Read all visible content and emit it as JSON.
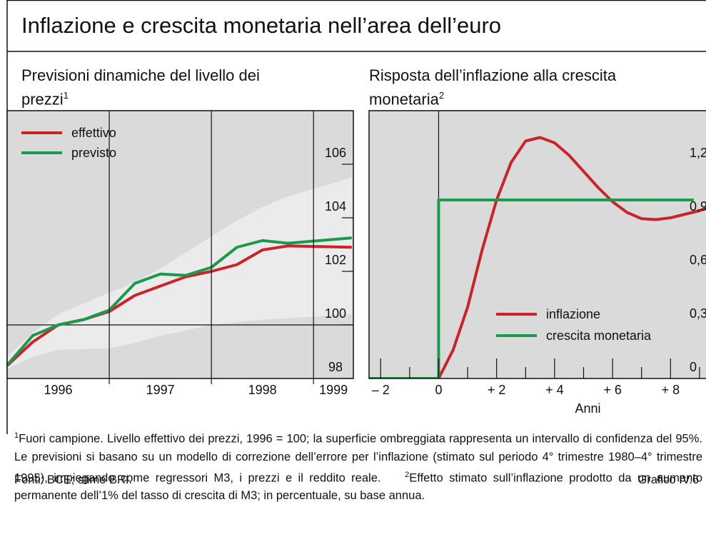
{
  "title": "Inflazione e crescita monetaria nell’area dell’euro",
  "chart_data": [
    {
      "type": "line",
      "title": "Previsioni dinamiche del livello dei prezzi",
      "title_note": "1",
      "x": [
        1996,
        1996.25,
        1996.5,
        1996.75,
        1997,
        1997.25,
        1997.5,
        1997.75,
        1998,
        1998.25,
        1998.5,
        1998.75,
        1999.375
      ],
      "series": [
        {
          "name": "effettivo",
          "color": "#c8242b",
          "values": [
            98.48,
            99.36,
            100.0,
            100.2,
            100.5,
            101.1,
            101.45,
            101.8,
            102.0,
            102.25,
            102.8,
            102.95,
            102.9
          ]
        },
        {
          "name": "previsto",
          "color": "#1a9a4a",
          "values": [
            98.5,
            99.6,
            100.0,
            100.2,
            100.55,
            101.55,
            101.9,
            101.85,
            102.15,
            102.9,
            103.15,
            103.05,
            103.25
          ]
        }
      ],
      "band": {
        "color": "#ebebeb",
        "upper": [
          98.8,
          99.7,
          100.4,
          100.8,
          101.2,
          101.6,
          102.1,
          102.7,
          103.3,
          103.9,
          104.4,
          104.8,
          105.5
        ],
        "lower": [
          98.37,
          98.8,
          99.07,
          99.1,
          99.12,
          99.33,
          99.6,
          99.8,
          100.0,
          100.1,
          100.2,
          100.25,
          100.4
        ]
      },
      "xlim": [
        1996,
        1999.39
      ],
      "xticks": [
        1996,
        1997,
        1998,
        1999
      ],
      "ylim": [
        98,
        108
      ],
      "yticks": [
        98,
        100,
        102,
        104,
        106
      ],
      "hline": 100,
      "legend": "upper left"
    },
    {
      "type": "line",
      "title": "Risposta dell’inflazione alla crescita monetaria",
      "title_note": "2",
      "x_label": "Anni",
      "series": [
        {
          "name": "inflazione",
          "color": "#c8242b",
          "x": [
            0,
            0.5,
            1,
            1.5,
            2,
            2.5,
            3,
            3.5,
            4,
            4.5,
            5,
            5.5,
            6,
            6.5,
            7,
            7.5,
            8,
            8.5,
            9,
            9.5
          ],
          "values": [
            0,
            0.16,
            0.4,
            0.72,
            1.0,
            1.21,
            1.33,
            1.35,
            1.32,
            1.25,
            1.16,
            1.07,
            0.99,
            0.93,
            0.895,
            0.89,
            0.9,
            0.92,
            0.94,
            0.97
          ]
        },
        {
          "name": "crescita monetaria",
          "color": "#1a9a4a",
          "x": [
            -2.4,
            0,
            0,
            8.8
          ],
          "values": [
            0,
            0,
            1,
            1
          ]
        }
      ],
      "xlim": [
        -2.4,
        9.74
      ],
      "xticks": [
        {
          "value": -2,
          "label": "– 2"
        },
        0,
        {
          "value": 2,
          "label": "+ 2"
        },
        {
          "value": 4,
          "label": "+ 4"
        },
        {
          "value": 6,
          "label": "+ 6"
        },
        {
          "value": 8,
          "label": "+ 8"
        }
      ],
      "xminor": [
        -1,
        1,
        3,
        5,
        7,
        9
      ],
      "ylim": [
        0,
        1.5
      ],
      "yticks": [
        0,
        {
          "value": 0.3,
          "label": "0,3"
        },
        {
          "value": 0.6,
          "label": "0,6"
        },
        {
          "value": 0.9,
          "label": "0,9"
        },
        {
          "value": 1.2,
          "label": "1,2"
        }
      ],
      "vline": 0,
      "legend": "lower right"
    }
  ],
  "footnotes": [
    {
      "marker": "1",
      "text": "Fuori campione. Livello effettivo dei prezzi, 1996 = 100; la superficie ombreggiata rappresenta un intervallo di confidenza del 95%. Le previsioni si basano su un modello di correzione dell’errore per l’inflazione (stimato sul periodo 4° trimestre 1980–4° trimestre 1995), impiegando come regressori M3, i prezzi e il reddito reale."
    },
    {
      "marker": "2",
      "text": "Effetto stimato sull’inflazione prodotto da un aumento permanente dell’1% del tasso di crescita di M3; in percentuale, su base annua."
    }
  ],
  "sources": "Fonti: BCE; stime BRI.",
  "chart_id": "Grafico IV.6"
}
